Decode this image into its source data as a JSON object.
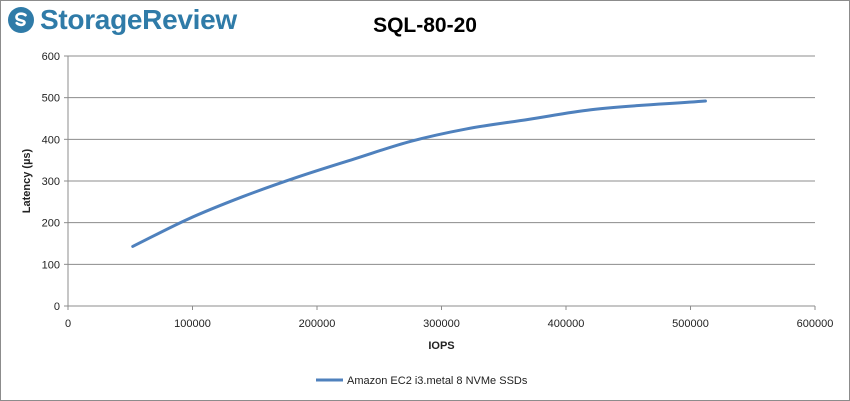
{
  "brand": {
    "name": "StorageReview",
    "accent_color": "#2f7ba8",
    "icon": "storagereview-logo-icon"
  },
  "chart_data": {
    "type": "line",
    "title": "SQL-80-20",
    "xlabel": "IOPS",
    "ylabel": "Latency (µs)",
    "xlim": [
      0,
      600000
    ],
    "ylim": [
      0,
      600
    ],
    "xticks": [
      0,
      100000,
      200000,
      300000,
      400000,
      500000,
      600000
    ],
    "yticks": [
      0,
      100,
      200,
      300,
      400,
      500,
      600
    ],
    "grid": "horizontal",
    "legend_position": "bottom",
    "series": [
      {
        "name": "Amazon EC2 i3.metal 8 NVMe SSDs",
        "color": "#4f81bd",
        "x": [
          52000,
          96000,
          140000,
          185000,
          230000,
          275000,
          320000,
          370000,
          420000,
          512000
        ],
        "y": [
          143,
          208,
          262,
          310,
          353,
          395,
          425,
          448,
          471,
          492
        ]
      }
    ]
  }
}
